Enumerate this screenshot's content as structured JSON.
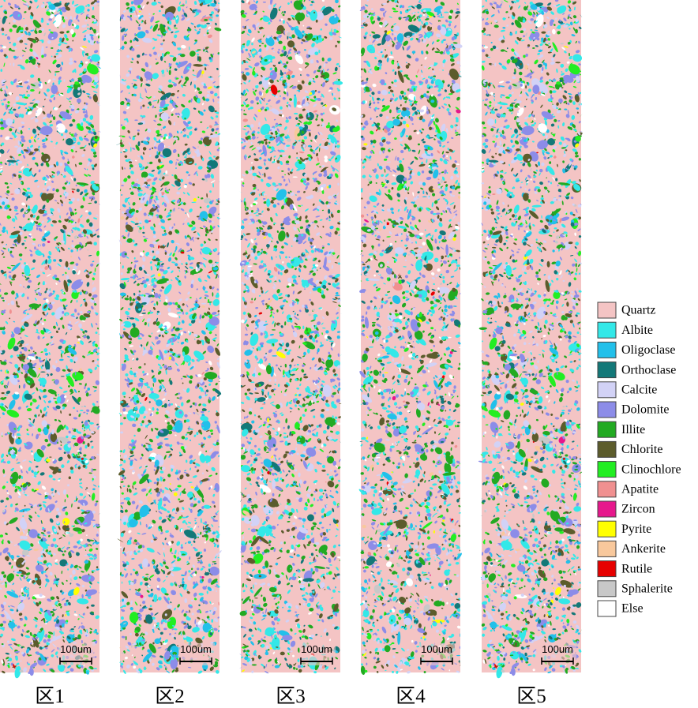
{
  "panels": [
    {
      "label": "区1",
      "scale": "100um"
    },
    {
      "label": "区2",
      "scale": "100um"
    },
    {
      "label": "区3",
      "scale": "100um"
    },
    {
      "label": "区4",
      "scale": "100um"
    },
    {
      "label": "区5",
      "scale": "100um"
    }
  ],
  "legend": [
    {
      "name": "Quartz",
      "color": "#f4c4c4"
    },
    {
      "name": "Albite",
      "color": "#33e8e8"
    },
    {
      "name": "Oligoclase",
      "color": "#22c0ea"
    },
    {
      "name": "Orthoclase",
      "color": "#137878"
    },
    {
      "name": "Calcite",
      "color": "#d2d2f6"
    },
    {
      "name": "Dolomite",
      "color": "#8c8ce8"
    },
    {
      "name": "Illite",
      "color": "#22aa22"
    },
    {
      "name": "Chlorite",
      "color": "#5c5c2c"
    },
    {
      "name": "Clinochlore",
      "color": "#22ee22"
    },
    {
      "name": "Apatite",
      "color": "#f09090"
    },
    {
      "name": "Zircon",
      "color": "#e6188c"
    },
    {
      "name": "Pyrite",
      "color": "#ffff00"
    },
    {
      "name": "Ankerite",
      "color": "#f8c89c"
    },
    {
      "name": "Rutile",
      "color": "#e60000"
    },
    {
      "name": "Sphalerite",
      "color": "#c8c8c8"
    },
    {
      "name": "Else",
      "color": "#ffffff"
    }
  ]
}
